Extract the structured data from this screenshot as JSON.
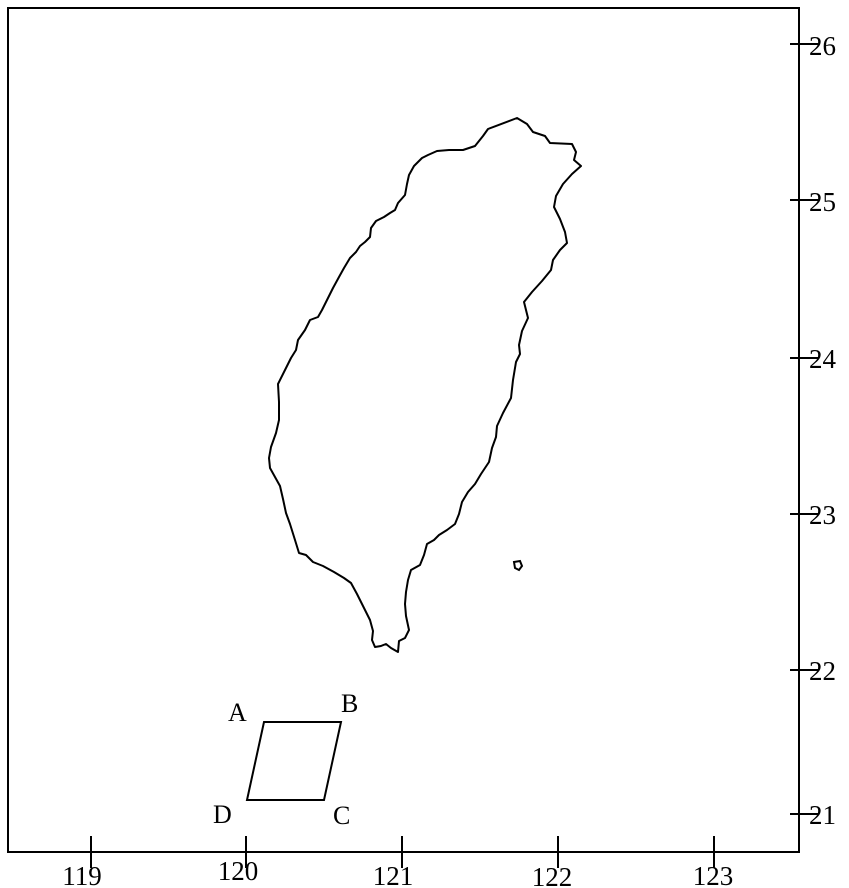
{
  "colors": {
    "line": "#000000",
    "background": "#ffffff"
  },
  "axes": {
    "longitude_ticks": [
      "119",
      "120",
      "121",
      "122",
      "123"
    ],
    "latitude_ticks": [
      "21",
      "22",
      "23",
      "24",
      "25",
      "26"
    ]
  },
  "quadrilateral": {
    "labels": {
      "a": "A",
      "b": "B",
      "c": "C",
      "d": "D"
    }
  }
}
